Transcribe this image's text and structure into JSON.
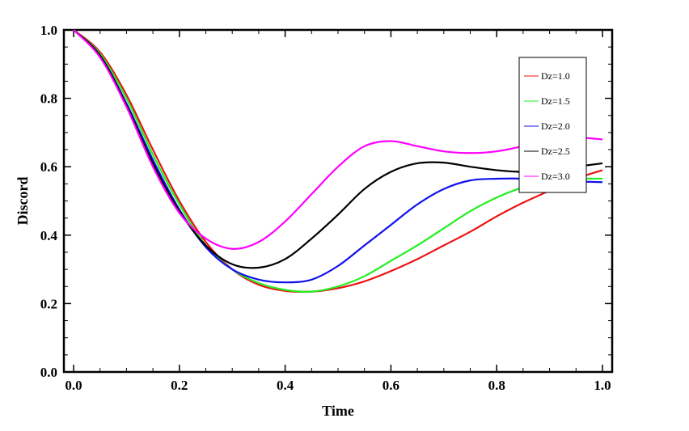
{
  "chart_data": {
    "type": "line",
    "title": "",
    "xlabel": "Time",
    "ylabel": "Discord",
    "xlim": [
      0.0,
      1.0
    ],
    "ylim": [
      0.0,
      1.0
    ],
    "x_ticks": [
      "0.0",
      "0.2",
      "0.4",
      "0.6",
      "0.8",
      "1.0"
    ],
    "y_ticks": [
      "0.0",
      "0.2",
      "0.4",
      "0.6",
      "0.8",
      "1.0"
    ],
    "grid": false,
    "legend_position": "top-right",
    "x": [
      0.0,
      0.05,
      0.1,
      0.15,
      0.2,
      0.25,
      0.3,
      0.35,
      0.4,
      0.45,
      0.5,
      0.55,
      0.6,
      0.65,
      0.7,
      0.75,
      0.8,
      0.85,
      0.9,
      0.95,
      1.0
    ],
    "series": [
      {
        "name": "Dz=1.0",
        "color": "#ee1111",
        "values": [
          1.0,
          0.935,
          0.81,
          0.65,
          0.5,
          0.38,
          0.3,
          0.255,
          0.237,
          0.235,
          0.245,
          0.265,
          0.295,
          0.33,
          0.37,
          0.41,
          0.455,
          0.495,
          0.53,
          0.565,
          0.59
        ]
      },
      {
        "name": "Dz=1.5",
        "color": "#22ee22",
        "values": [
          1.0,
          0.93,
          0.8,
          0.635,
          0.49,
          0.37,
          0.3,
          0.26,
          0.24,
          0.235,
          0.25,
          0.28,
          0.325,
          0.37,
          0.42,
          0.47,
          0.51,
          0.54,
          0.56,
          0.565,
          0.565
        ]
      },
      {
        "name": "Dz=2.0",
        "color": "#1111ee",
        "values": [
          1.0,
          0.925,
          0.785,
          0.62,
          0.475,
          0.365,
          0.3,
          0.27,
          0.262,
          0.27,
          0.31,
          0.37,
          0.43,
          0.49,
          0.535,
          0.56,
          0.565,
          0.565,
          0.56,
          0.557,
          0.555
        ]
      },
      {
        "name": "Dz=2.5",
        "color": "#000000",
        "values": [
          1.0,
          0.925,
          0.78,
          0.61,
          0.47,
          0.37,
          0.315,
          0.305,
          0.33,
          0.39,
          0.46,
          0.535,
          0.585,
          0.61,
          0.612,
          0.6,
          0.59,
          0.585,
          0.59,
          0.6,
          0.61
        ]
      },
      {
        "name": "Dz=3.0",
        "color": "#ff00ff",
        "values": [
          1.0,
          0.92,
          0.775,
          0.6,
          0.465,
          0.39,
          0.36,
          0.38,
          0.44,
          0.52,
          0.6,
          0.66,
          0.675,
          0.66,
          0.645,
          0.64,
          0.645,
          0.66,
          0.675,
          0.685,
          0.68
        ]
      }
    ]
  }
}
